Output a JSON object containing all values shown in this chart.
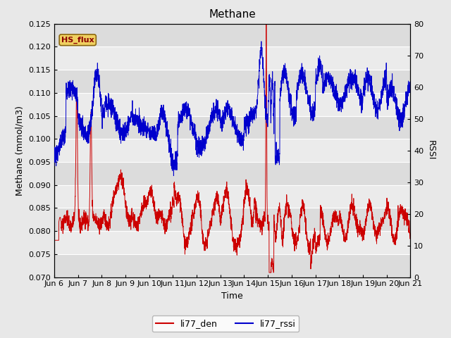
{
  "title": "Methane",
  "ylabel_left": "Methane (mmol/m3)",
  "ylabel_right": "RSSI",
  "xlabel": "Time",
  "ylim_left": [
    0.07,
    0.125
  ],
  "ylim_right": [
    0,
    80
  ],
  "yticks_left": [
    0.07,
    0.075,
    0.08,
    0.085,
    0.09,
    0.095,
    0.1,
    0.105,
    0.11,
    0.115,
    0.12,
    0.125
  ],
  "yticks_right": [
    0,
    10,
    20,
    30,
    40,
    50,
    60,
    70,
    80
  ],
  "xtick_labels": [
    "Jun 6",
    "Jun 7",
    "Jun 8",
    "Jun 9",
    "Jun 10",
    "Jun 11",
    "Jun 12",
    "Jun 13",
    "Jun 14",
    "Jun 15",
    "Jun 16",
    "Jun 17",
    "Jun 18",
    "Jun 19",
    "Jun 20",
    "Jun 21"
  ],
  "line_red_label": "li77_den",
  "line_blue_label": "li77_rssi",
  "hs_flux_label": "HS_flux",
  "bg_color": "#e8e8e8",
  "plot_bg_color": "#f0f0f0",
  "red_color": "#cc0000",
  "blue_color": "#0000cc",
  "title_fontsize": 11,
  "label_fontsize": 9,
  "tick_fontsize": 8
}
